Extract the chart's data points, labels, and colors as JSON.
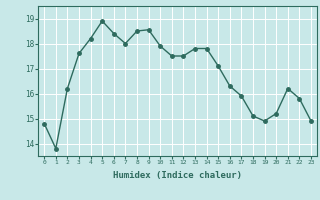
{
  "x": [
    0,
    1,
    2,
    3,
    4,
    5,
    6,
    7,
    8,
    9,
    10,
    11,
    12,
    13,
    14,
    15,
    16,
    17,
    18,
    19,
    20,
    21,
    22,
    23
  ],
  "y": [
    14.8,
    13.8,
    16.2,
    17.6,
    18.2,
    18.9,
    18.4,
    18.0,
    18.5,
    18.55,
    17.9,
    17.5,
    17.5,
    17.8,
    17.8,
    17.1,
    16.3,
    15.9,
    15.1,
    14.9,
    15.2,
    16.2,
    15.8,
    14.9
  ],
  "xlabel": "Humidex (Indice chaleur)",
  "xlim": [
    -0.5,
    23.5
  ],
  "ylim": [
    13.5,
    19.5
  ],
  "yticks": [
    14,
    15,
    16,
    17,
    18,
    19
  ],
  "xticks": [
    0,
    1,
    2,
    3,
    4,
    5,
    6,
    7,
    8,
    9,
    10,
    11,
    12,
    13,
    14,
    15,
    16,
    17,
    18,
    19,
    20,
    21,
    22,
    23
  ],
  "line_color": "#2e6b5e",
  "marker_size": 2.5,
  "bg_color": "#c8e8e8",
  "grid_color": "#ffffff",
  "fig_bg": "#c8e8e8",
  "xlabel_color": "#2e6b5e",
  "tick_color": "#2e6b5e",
  "spine_color": "#2e6b5e"
}
